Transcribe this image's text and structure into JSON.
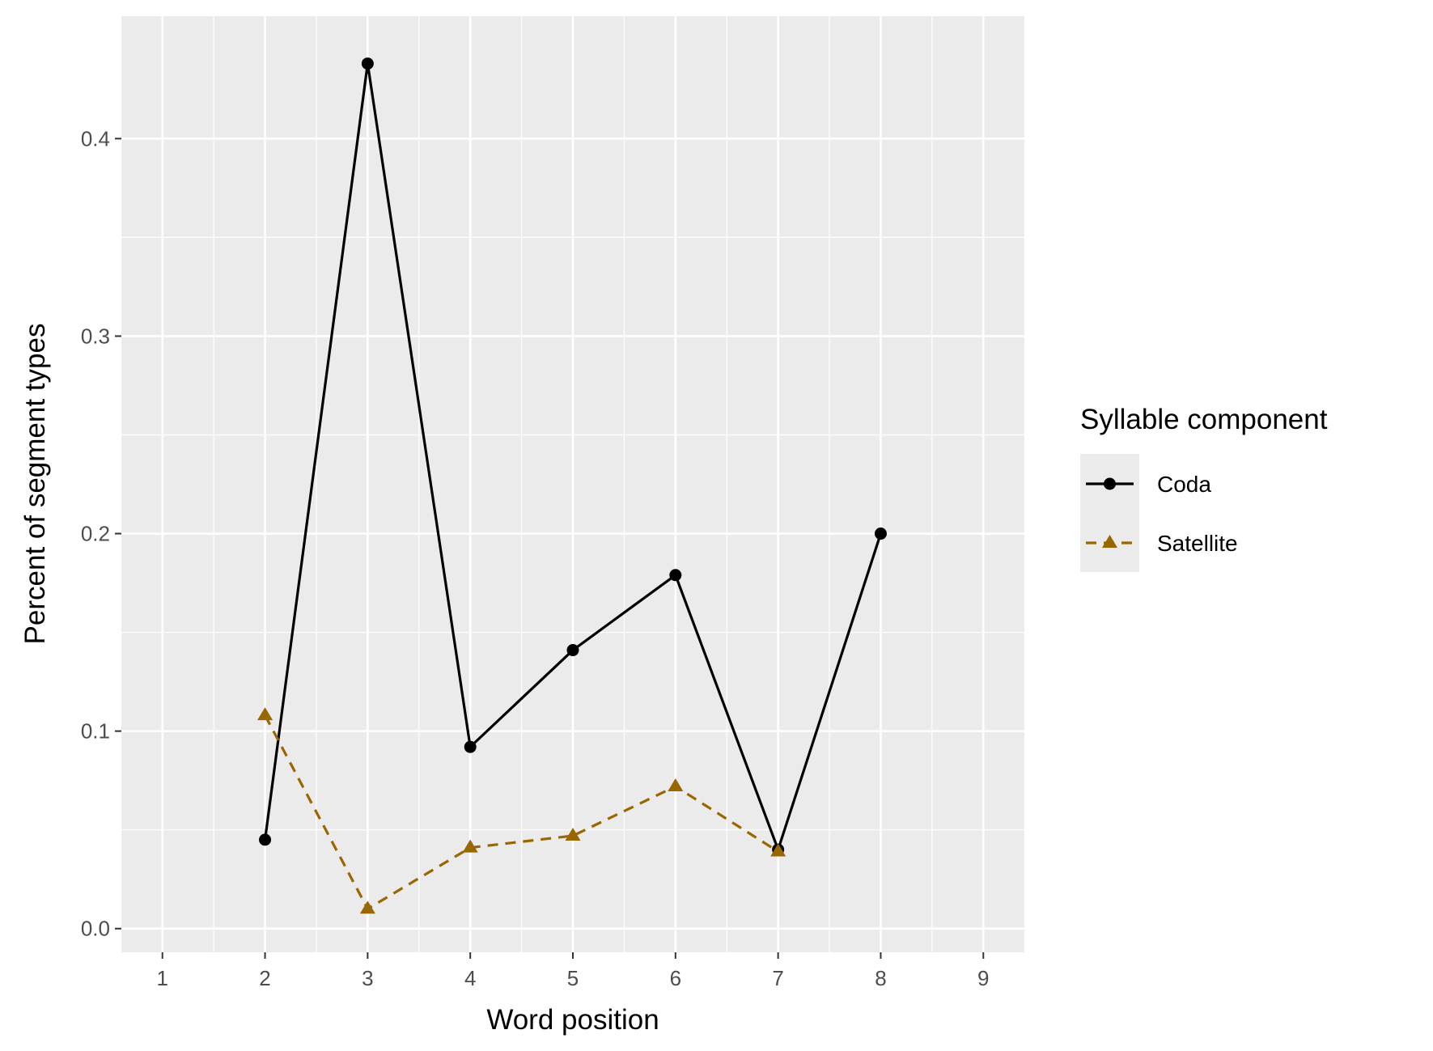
{
  "chart_data": {
    "type": "line",
    "xlabel": "Word position",
    "ylabel": "Percent of segment types",
    "xlim": [
      0.6,
      9.4
    ],
    "ylim": [
      -0.012,
      0.462
    ],
    "x_ticks": [
      1,
      2,
      3,
      4,
      5,
      6,
      7,
      8,
      9
    ],
    "x_tick_labels": [
      "1",
      "2",
      "3",
      "4",
      "5",
      "6",
      "7",
      "8",
      "9"
    ],
    "y_ticks": [
      0.0,
      0.1,
      0.2,
      0.3,
      0.4
    ],
    "y_tick_labels": [
      "0.0",
      "0.1",
      "0.2",
      "0.3",
      "0.4"
    ],
    "grid": true,
    "legend": {
      "title": "Syllable component",
      "position": "right"
    },
    "series": [
      {
        "name": "Coda",
        "color": "#000000",
        "marker": "circle",
        "line_style": "solid",
        "x": [
          2,
          3,
          4,
          5,
          6,
          7,
          8
        ],
        "y": [
          0.045,
          0.438,
          0.092,
          0.141,
          0.179,
          0.04,
          0.2
        ]
      },
      {
        "name": "Satellite",
        "color": "#996600",
        "marker": "triangle",
        "line_style": "dashed",
        "x": [
          2,
          3,
          4,
          5,
          6,
          7
        ],
        "y": [
          0.108,
          0.01,
          0.041,
          0.047,
          0.072,
          0.039
        ]
      }
    ]
  }
}
